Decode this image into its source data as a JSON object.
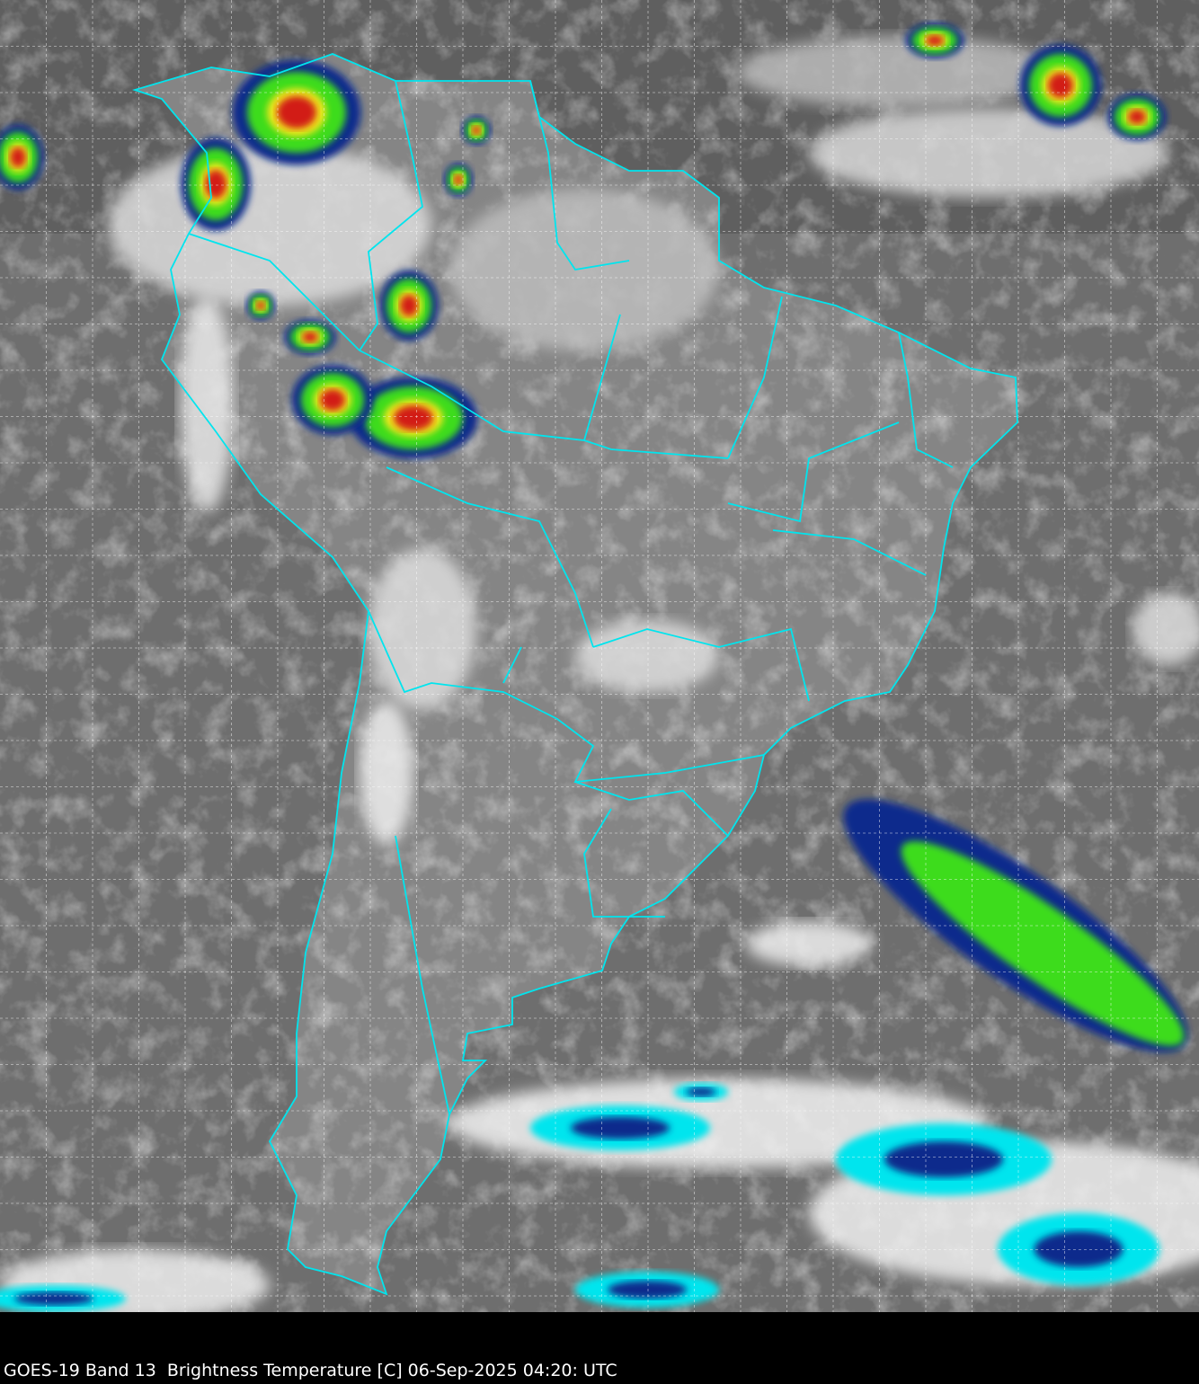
{
  "caption": "GOES-19 Band 13  Brightness Temperature [C] 06-Sep-2025 04:20: UTC",
  "colors": {
    "background": "#000000",
    "ocean_gray": "#6e6e6e",
    "land_gray": "#8a8a8a",
    "borders": "#00e5ee",
    "grid": "#ffffff",
    "cold_cloud_cyan": "#00e5ee",
    "cold_cloud_blue": "#0a2a8c",
    "convective_green": "#3cdc1e",
    "convective_yellow": "#f0e61e",
    "convective_red": "#d21e14",
    "text": "#ffffff"
  },
  "grid": {
    "style": "dashed",
    "visible": true
  }
}
